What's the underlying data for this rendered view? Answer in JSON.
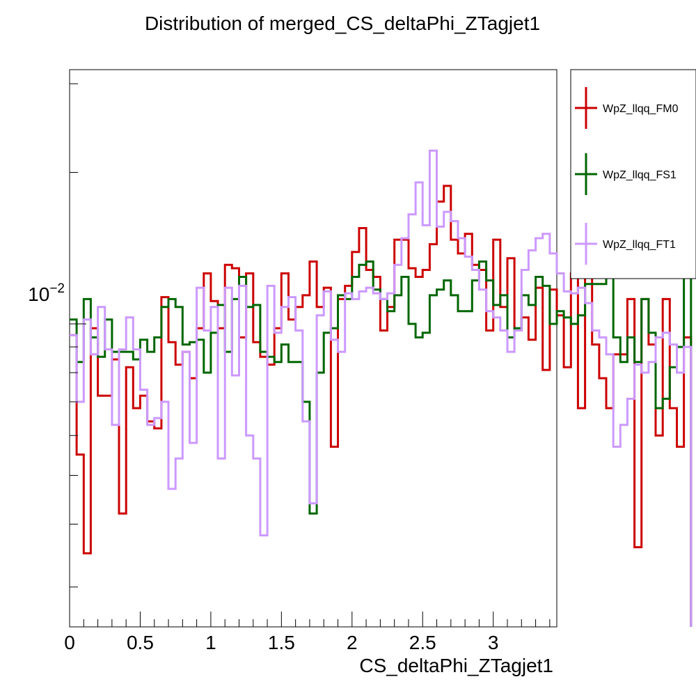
{
  "chart_data": {
    "type": "step-histogram",
    "title": "Distribution of merged_CS_deltaPhi_ZTagjet1",
    "xlabel": "CS_deltaPhi_ZTagjet1",
    "ylabel": "",
    "xlim": [
      0,
      3.45
    ],
    "ylim": [
      0.0025,
      0.032
    ],
    "yscale": "log",
    "bin_width": 0.05,
    "x_ticks": [
      "0",
      "0.5",
      "1",
      "1.5",
      "2",
      "2.5",
      "3"
    ],
    "x_tick_values": [
      0,
      0.5,
      1,
      1.5,
      2,
      2.5,
      3
    ],
    "y_tick_label": {
      "base": "10",
      "exp": "−2",
      "value": 0.01
    },
    "legend": {
      "placement": "right-outside",
      "entries": [
        "WpZ_llqq_FM0",
        "WpZ_llqq_FS1",
        "WpZ_llqq_FT1"
      ]
    },
    "series": [
      {
        "name": "WpZ_llqq_FM0",
        "color": "#cc0000",
        "values": [
          0.0095,
          0.0055,
          0.0035,
          0.0098,
          0.0072,
          0.0072,
          0.0085,
          0.0042,
          0.0082,
          0.0068,
          0.0072,
          0.0064,
          0.0062,
          0.0113,
          0.0092,
          0.0083,
          0.0088,
          0.0078,
          0.0098,
          0.0126,
          0.0111,
          0.0098,
          0.0131,
          0.0129,
          0.0094,
          0.0126,
          0.0092,
          0.0086,
          0.0083,
          0.0098,
          0.0126,
          0.0102,
          0.0108,
          0.0114,
          0.0133,
          0.0108,
          0.0118,
          0.0057,
          0.0112,
          0.0119,
          0.0139,
          0.0155,
          0.0128,
          0.0124,
          0.0097,
          0.0108,
          0.0147,
          0.0147,
          0.0129,
          0.0124,
          0.0128,
          0.0144,
          0.0175,
          0.0188,
          0.0147,
          0.0138,
          0.0151,
          0.0131,
          0.0128,
          0.0097,
          0.0147,
          0.0108,
          0.0135,
          0.0097,
          0.0103,
          0.0093,
          0.0118,
          0.0081,
          0.0117,
          0.0104,
          0.0082,
          0.0126,
          0.0068,
          0.0126,
          0.0091,
          0.0078,
          0.0068,
          0.0087,
          0.0087,
          0.0112,
          0.0036,
          0.0112,
          0.0091,
          0.006,
          0.0112,
          0.0068,
          0.0057,
          0.0094
        ]
      },
      {
        "name": "WpZ_llqq_FS1",
        "color": "#006600",
        "values": [
          0.0102,
          0.0084,
          0.0112,
          0.0094,
          0.0086,
          0.0102,
          0.0088,
          0.0088,
          0.0088,
          0.0085,
          0.0093,
          0.0088,
          0.0094,
          0.0108,
          0.0112,
          0.0108,
          0.0091,
          0.0092,
          0.0093,
          0.008,
          0.0096,
          0.0109,
          0.0088,
          0.0112,
          0.0124,
          0.0108,
          0.0109,
          0.0088,
          0.0086,
          0.0084,
          0.0091,
          0.0084,
          0.0084,
          0.007,
          0.0042,
          0.008,
          0.0096,
          0.0098,
          0.0114,
          0.0112,
          0.0124,
          0.0131,
          0.0133,
          0.0117,
          0.0112,
          0.0106,
          0.0114,
          0.0124,
          0.01,
          0.0094,
          0.0096,
          0.0114,
          0.0117,
          0.0122,
          0.0114,
          0.0106,
          0.0106,
          0.0122,
          0.0133,
          0.0122,
          0.0109,
          0.0114,
          0.0094,
          0.0098,
          0.0114,
          0.0109,
          0.0124,
          0.0119,
          0.01,
          0.0106,
          0.0103,
          0.01,
          0.0104,
          0.012,
          0.012,
          0.012,
          0.0124,
          0.0094,
          0.0084,
          0.0094,
          0.0084,
          0.0112,
          0.0096,
          0.0068,
          0.0071,
          0.0082,
          0.009,
          0.0136
        ]
      },
      {
        "name": "WpZ_llqq_FT1",
        "color": "#cc99ff",
        "values": [
          0.0095,
          0.007,
          0.0102,
          0.0087,
          0.0108,
          0.0089,
          0.0063,
          0.0089,
          0.0103,
          0.0089,
          0.0074,
          0.0063,
          0.0065,
          0.007,
          0.0047,
          0.0054,
          0.0088,
          0.0058,
          0.0118,
          0.0097,
          0.0108,
          0.0054,
          0.0118,
          0.0079,
          0.0119,
          0.006,
          0.0054,
          0.0038,
          0.0119,
          0.0096,
          0.0108,
          0.0113,
          0.0097,
          0.0064,
          0.0044,
          0.0104,
          0.0116,
          0.0093,
          0.0088,
          0.0115,
          0.0112,
          0.0116,
          0.0118,
          0.0115,
          0.0112,
          0.0115,
          0.0131,
          0.0148,
          0.0165,
          0.0191,
          0.0157,
          0.0221,
          0.0156,
          0.0167,
          0.016,
          0.0148,
          0.0136,
          0.0128,
          0.0117,
          0.0106,
          0.0103,
          0.0097,
          0.0088,
          0.0097,
          0.0128,
          0.014,
          0.0148,
          0.0151,
          0.0138,
          0.0126,
          0.0116,
          0.0115,
          0.0118,
          0.011,
          0.0097,
          0.0094,
          0.0087,
          0.0057,
          0.0063,
          0.0071,
          0.0083,
          0.008,
          0.0084,
          0.0094,
          0.0096,
          0.0091,
          0.008,
          0.009
        ]
      }
    ]
  }
}
